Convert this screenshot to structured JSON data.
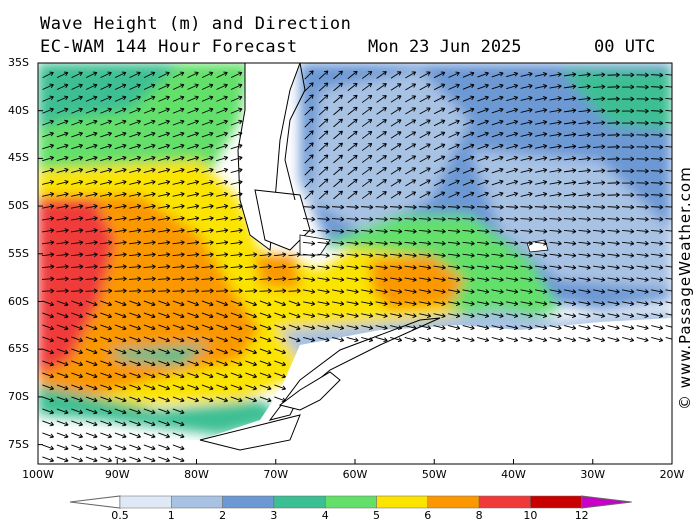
{
  "title": {
    "line1": "Wave Height (m) and Direction",
    "line2": "EC-WAM 144 Hour Forecast",
    "date": "Mon 23 Jun 2025",
    "time": "00 UTC"
  },
  "credit": "© www.PassageWeather.com",
  "lat_labels": [
    "35S",
    "40S",
    "45S",
    "50S",
    "55S",
    "60S",
    "65S",
    "70S",
    "75S"
  ],
  "lon_labels": [
    "100W",
    "90W",
    "80W",
    "70W",
    "60W",
    "50W",
    "40W",
    "30W",
    "20W"
  ],
  "colorbar": {
    "labels": [
      "0.5",
      "1",
      "2",
      "3",
      "4",
      "5",
      "6",
      "8",
      "10",
      "12"
    ],
    "colors": [
      "#dfe9f6",
      "#a8c2e4",
      "#6c98d4",
      "#3cbf93",
      "#63e06a",
      "#fbe400",
      "#fb9800",
      "#f03a3a",
      "#c80000",
      "#c800c8"
    ]
  }
}
